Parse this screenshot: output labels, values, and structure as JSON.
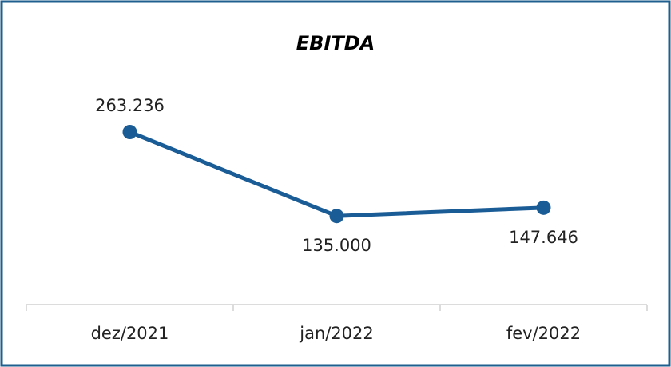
{
  "chart_data": {
    "type": "line",
    "title": "EBITDA",
    "categories": [
      "dez/2021",
      "jan/2022",
      "fev/2022"
    ],
    "series": [
      {
        "name": "EBITDA",
        "color": "#1a5c96",
        "values": [
          263236,
          135000,
          147646
        ],
        "value_labels": [
          "263.236",
          "135.000",
          "147.646"
        ]
      }
    ]
  }
}
